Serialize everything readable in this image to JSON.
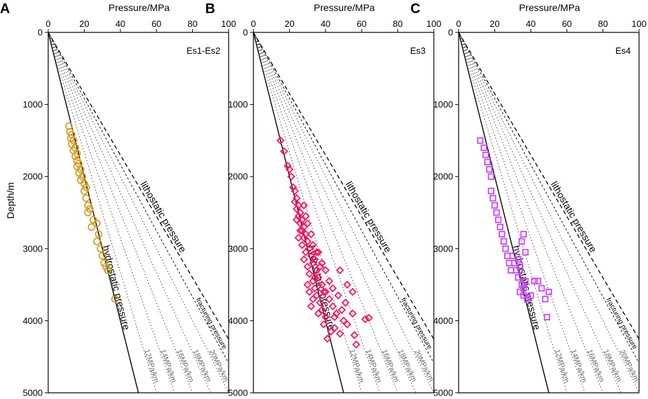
{
  "chart_data": {
    "type": "scatter",
    "xlabel": "Pressure/MPa",
    "ylabel": "Depth/m",
    "xlim": [
      0,
      100
    ],
    "ylim": [
      5000,
      0
    ],
    "xticks": [
      0,
      20,
      40,
      60,
      80,
      100
    ],
    "yticks": [
      0,
      1000,
      2000,
      3000,
      4000,
      5000
    ],
    "reference_lines": [
      {
        "name": "hydrostatic pressure",
        "gradient": 10,
        "style": "solid"
      },
      {
        "name": "12MPa/km",
        "gradient": 12,
        "style": "dotted"
      },
      {
        "name": "14MPa/km",
        "gradient": 14,
        "style": "dotted"
      },
      {
        "name": "16MPa/km",
        "gradient": 16,
        "style": "dotted"
      },
      {
        "name": "18MPa/km",
        "gradient": 18,
        "style": "dotted"
      },
      {
        "name": "20MPa/km",
        "gradient": 20,
        "style": "dotted"
      },
      {
        "name": "fracturing pressure",
        "gradient": 21.8,
        "style": "short-dash"
      },
      {
        "name": "lithostatic pressure",
        "gradient": 23.5,
        "style": "dashed"
      }
    ],
    "panels": [
      {
        "letter": "A",
        "label": "Es1-Es2",
        "marker": "circle",
        "color": "#D4A02A",
        "points": [
          [
            11.5,
            1300
          ],
          [
            12,
            1380
          ],
          [
            13,
            1420
          ],
          [
            12.5,
            1470
          ],
          [
            14,
            1500
          ],
          [
            13,
            1550
          ],
          [
            15,
            1600
          ],
          [
            14,
            1640
          ],
          [
            16,
            1680
          ],
          [
            15,
            1720
          ],
          [
            16,
            1780
          ],
          [
            17,
            1820
          ],
          [
            16,
            1860
          ],
          [
            18,
            1900
          ],
          [
            17,
            1950
          ],
          [
            19,
            2000
          ],
          [
            18,
            2050
          ],
          [
            20,
            2100
          ],
          [
            21,
            2150
          ],
          [
            20,
            2200
          ],
          [
            21,
            2300
          ],
          [
            22,
            2400
          ],
          [
            23,
            2450
          ],
          [
            22,
            2500
          ],
          [
            25,
            2600
          ],
          [
            27,
            2650
          ],
          [
            24,
            2700
          ],
          [
            28,
            2800
          ],
          [
            27,
            2900
          ],
          [
            29,
            3000
          ],
          [
            30,
            3100
          ],
          [
            31,
            3200
          ],
          [
            32,
            3250
          ],
          [
            33,
            3300
          ],
          [
            37,
            3700
          ]
        ]
      },
      {
        "letter": "B",
        "label": "Es3",
        "marker": "diamond",
        "color": "#FF1464",
        "points": [
          [
            15,
            1500
          ],
          [
            17,
            1650
          ],
          [
            19,
            1850
          ],
          [
            20,
            1900
          ],
          [
            21,
            2000
          ],
          [
            22,
            2150
          ],
          [
            23,
            2200
          ],
          [
            24,
            2300
          ],
          [
            23,
            2350
          ],
          [
            25,
            2400
          ],
          [
            24,
            2450
          ],
          [
            26,
            2500
          ],
          [
            25,
            2550
          ],
          [
            27,
            2600
          ],
          [
            26,
            2650
          ],
          [
            28,
            2700
          ],
          [
            27,
            2750
          ],
          [
            29,
            2800
          ],
          [
            28,
            2850
          ],
          [
            30,
            2900
          ],
          [
            27,
            2950
          ],
          [
            31,
            3000
          ],
          [
            29,
            3050
          ],
          [
            32,
            3100
          ],
          [
            28,
            3150
          ],
          [
            33,
            3200
          ],
          [
            30,
            3250
          ],
          [
            35,
            3300
          ],
          [
            31,
            3350
          ],
          [
            36,
            3400
          ],
          [
            33,
            3450
          ],
          [
            38,
            3500
          ],
          [
            34,
            3550
          ],
          [
            40,
            3600
          ],
          [
            35,
            3650
          ],
          [
            42,
            3700
          ],
          [
            37,
            3750
          ],
          [
            44,
            3800
          ],
          [
            38,
            3850
          ],
          [
            46,
            3900
          ],
          [
            40,
            3950
          ],
          [
            50,
            4000
          ],
          [
            39,
            4050
          ],
          [
            55,
            3900
          ],
          [
            45,
            4100
          ],
          [
            43,
            4150
          ],
          [
            52,
            4050
          ],
          [
            48,
            4180
          ],
          [
            41,
            4250
          ],
          [
            56,
            4200
          ],
          [
            57,
            4330
          ],
          [
            62,
            3980
          ],
          [
            64,
            3960
          ],
          [
            45,
            3950
          ],
          [
            49,
            3850
          ],
          [
            36,
            3900
          ],
          [
            34,
            3400
          ],
          [
            37,
            3250
          ],
          [
            39,
            3600
          ],
          [
            33,
            3700
          ],
          [
            32,
            3800
          ],
          [
            30,
            3500
          ],
          [
            31,
            3600
          ],
          [
            34,
            3150
          ],
          [
            36,
            3050
          ],
          [
            38,
            3200
          ],
          [
            40,
            3300
          ],
          [
            42,
            3450
          ],
          [
            44,
            3550
          ],
          [
            47,
            3650
          ],
          [
            51,
            3750
          ],
          [
            55,
            3600
          ],
          [
            52,
            3500
          ],
          [
            48,
            3300
          ],
          [
            26,
            2750
          ],
          [
            25,
            2850
          ],
          [
            24,
            2600
          ],
          [
            28,
            2400
          ],
          [
            29,
            2550
          ],
          [
            30,
            2650
          ],
          [
            32,
            2800
          ],
          [
            33,
            2950
          ],
          [
            35,
            3050
          ]
        ]
      },
      {
        "letter": "C",
        "label": "Es4",
        "marker": "square",
        "color": "#CC44FF",
        "points": [
          [
            12,
            1500
          ],
          [
            14,
            1600
          ],
          [
            15,
            1700
          ],
          [
            16,
            1800
          ],
          [
            17,
            1900
          ],
          [
            18,
            2000
          ],
          [
            18,
            2200
          ],
          [
            19,
            2300
          ],
          [
            20,
            2400
          ],
          [
            21,
            2500
          ],
          [
            22,
            2600
          ],
          [
            23,
            2700
          ],
          [
            24,
            2800
          ],
          [
            25,
            2900
          ],
          [
            26,
            3000
          ],
          [
            27,
            3100
          ],
          [
            28,
            3200
          ],
          [
            29,
            3300
          ],
          [
            30,
            3100
          ],
          [
            31,
            3200
          ],
          [
            32,
            3300
          ],
          [
            33,
            3150
          ],
          [
            34,
            3250
          ],
          [
            33,
            3400
          ],
          [
            35,
            3500
          ],
          [
            34,
            3600
          ],
          [
            36,
            3550
          ],
          [
            37,
            3450
          ],
          [
            36,
            3650
          ],
          [
            38,
            3700
          ],
          [
            40,
            3650
          ],
          [
            42,
            3450
          ],
          [
            44,
            3450
          ],
          [
            46,
            3550
          ],
          [
            48,
            3700
          ],
          [
            50,
            3600
          ],
          [
            49,
            3950
          ],
          [
            36,
            2800
          ],
          [
            35,
            2900
          ],
          [
            37,
            3050
          ]
        ]
      }
    ]
  }
}
